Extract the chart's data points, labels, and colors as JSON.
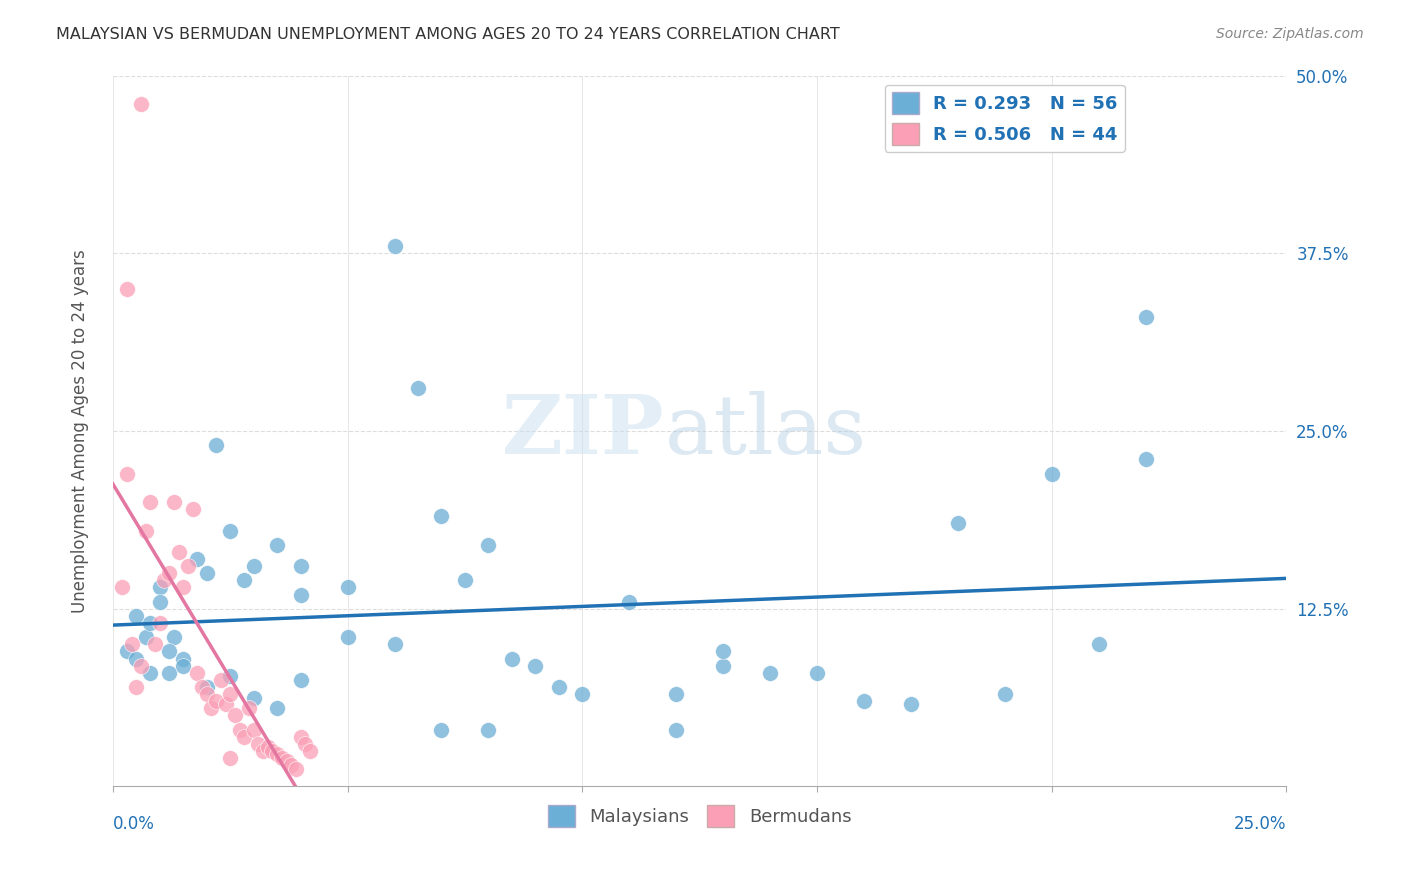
{
  "title": "MALAYSIAN VS BERMUDAN UNEMPLOYMENT AMONG AGES 20 TO 24 YEARS CORRELATION CHART",
  "source": "Source: ZipAtlas.com",
  "ylabel": "Unemployment Among Ages 20 to 24 years",
  "ytick_labels": [
    "",
    "12.5%",
    "25.0%",
    "37.5%",
    "50.0%"
  ],
  "ytick_values": [
    0,
    0.125,
    0.25,
    0.375,
    0.5
  ],
  "xlim": [
    0,
    0.25
  ],
  "ylim": [
    0,
    0.5
  ],
  "blue_R": 0.293,
  "blue_N": 56,
  "pink_R": 0.506,
  "pink_N": 44,
  "blue_color": "#6baed6",
  "pink_color": "#fa9fb5",
  "blue_line_color": "#2171b5",
  "pink_line_color": "#e377a2",
  "watermark_zip": "ZIP",
  "watermark_atlas": "atlas",
  "blue_points_x": [
    0.01,
    0.005,
    0.007,
    0.003,
    0.008,
    0.01,
    0.013,
    0.015,
    0.012,
    0.02,
    0.018,
    0.022,
    0.025,
    0.03,
    0.028,
    0.035,
    0.04,
    0.04,
    0.05,
    0.06,
    0.065,
    0.07,
    0.075,
    0.08,
    0.085,
    0.09,
    0.095,
    0.1,
    0.11,
    0.12,
    0.13,
    0.14,
    0.15,
    0.16,
    0.17,
    0.18,
    0.19,
    0.2,
    0.21,
    0.22,
    0.005,
    0.008,
    0.012,
    0.015,
    0.02,
    0.025,
    0.03,
    0.035,
    0.04,
    0.05,
    0.06,
    0.07,
    0.08,
    0.12,
    0.13,
    0.22
  ],
  "blue_points_y": [
    0.14,
    0.12,
    0.105,
    0.095,
    0.115,
    0.13,
    0.105,
    0.09,
    0.08,
    0.15,
    0.16,
    0.24,
    0.18,
    0.155,
    0.145,
    0.17,
    0.155,
    0.135,
    0.14,
    0.38,
    0.28,
    0.19,
    0.145,
    0.17,
    0.09,
    0.085,
    0.07,
    0.065,
    0.13,
    0.065,
    0.085,
    0.08,
    0.08,
    0.06,
    0.058,
    0.185,
    0.065,
    0.22,
    0.1,
    0.23,
    0.09,
    0.08,
    0.095,
    0.085,
    0.07,
    0.078,
    0.062,
    0.055,
    0.075,
    0.105,
    0.1,
    0.04,
    0.04,
    0.04,
    0.095,
    0.33
  ],
  "pink_points_x": [
    0.002,
    0.003,
    0.004,
    0.005,
    0.006,
    0.007,
    0.008,
    0.009,
    0.01,
    0.011,
    0.012,
    0.013,
    0.014,
    0.015,
    0.016,
    0.017,
    0.018,
    0.019,
    0.02,
    0.021,
    0.022,
    0.023,
    0.024,
    0.025,
    0.026,
    0.027,
    0.028,
    0.029,
    0.03,
    0.031,
    0.032,
    0.033,
    0.034,
    0.035,
    0.036,
    0.037,
    0.038,
    0.039,
    0.04,
    0.041,
    0.042,
    0.003,
    0.006,
    0.025
  ],
  "pink_points_y": [
    0.14,
    0.22,
    0.1,
    0.07,
    0.085,
    0.18,
    0.2,
    0.1,
    0.115,
    0.145,
    0.15,
    0.2,
    0.165,
    0.14,
    0.155,
    0.195,
    0.08,
    0.07,
    0.065,
    0.055,
    0.06,
    0.075,
    0.058,
    0.065,
    0.05,
    0.04,
    0.035,
    0.055,
    0.04,
    0.03,
    0.025,
    0.028,
    0.025,
    0.023,
    0.02,
    0.018,
    0.015,
    0.012,
    0.035,
    0.03,
    0.025,
    0.35,
    0.48,
    0.02
  ]
}
